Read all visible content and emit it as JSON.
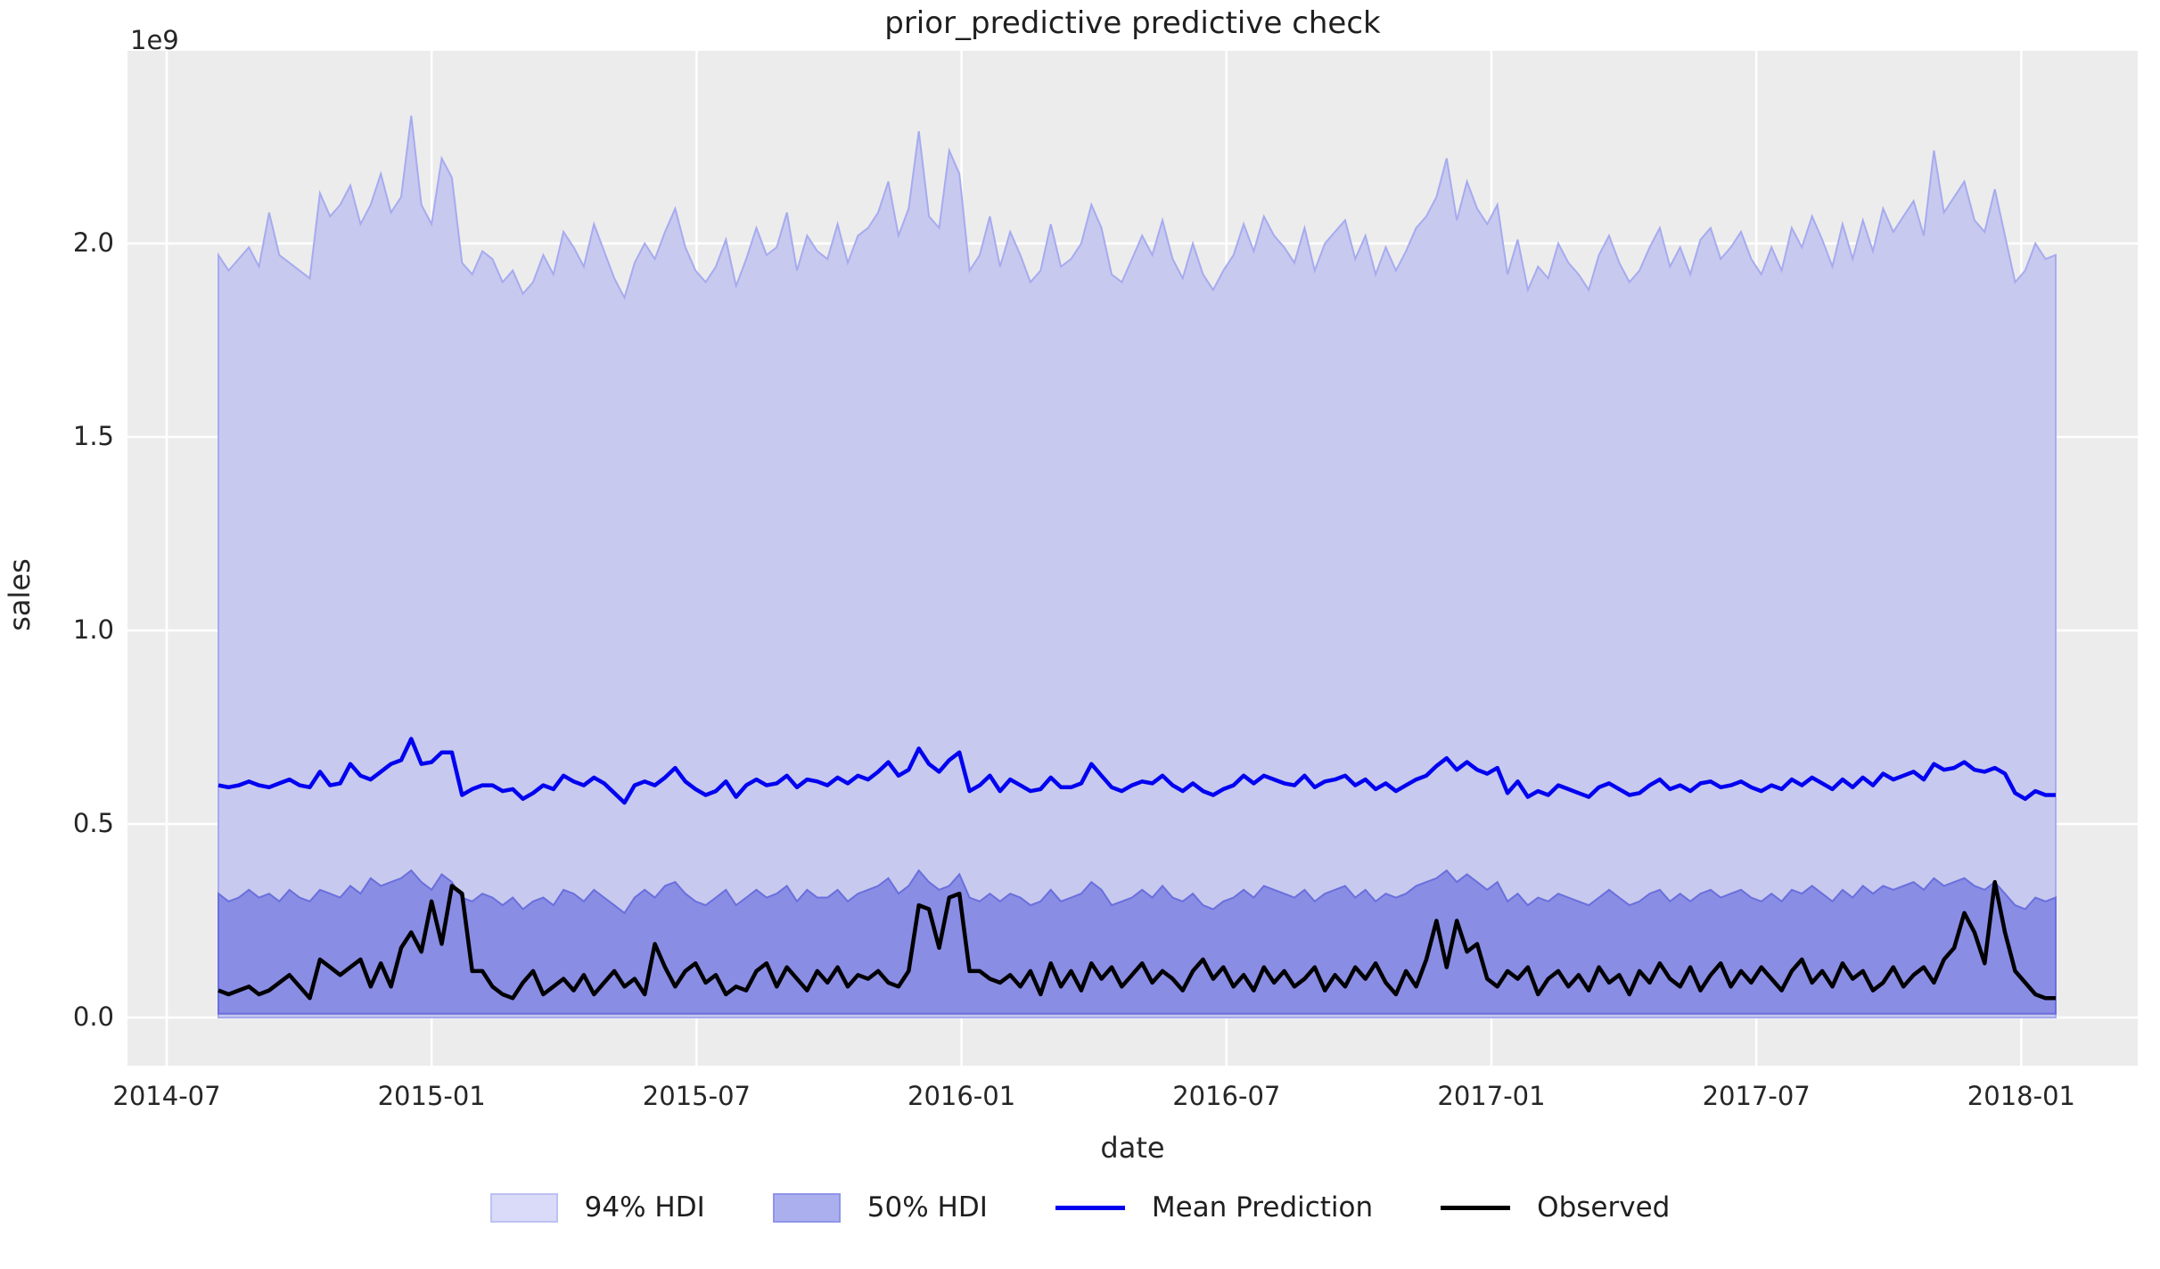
{
  "chart_data": {
    "type": "line",
    "title": "prior_predictive predictive check",
    "xlabel": "date",
    "ylabel": "sales",
    "y_offset_text": "1e9",
    "y_units": "1e9",
    "ylim": [
      -0.12,
      2.5
    ],
    "xticks": [
      "2014-07",
      "2015-01",
      "2015-07",
      "2016-01",
      "2016-07",
      "2017-01",
      "2017-07",
      "2018-01"
    ],
    "yticks": [
      "0.0",
      "0.5",
      "1.0",
      "1.5",
      "2.0"
    ],
    "ytick_values": [
      0.0,
      0.5,
      1.0,
      1.5,
      2.0
    ],
    "x_start_date": "2014-08-03",
    "x_end_date": "2018-01-21",
    "x_frequency": "weekly",
    "legend": {
      "position": "bottom-center",
      "items": [
        {
          "label": "94% HDI",
          "type": "patch",
          "fill": "#d9dbf8",
          "edge": "#bdc1f1"
        },
        {
          "label": "50% HDI",
          "type": "patch",
          "fill": "#abafee",
          "edge": "#8f94e8"
        },
        {
          "label": "Mean Prediction",
          "type": "line",
          "color": "#0202f0"
        },
        {
          "label": "Observed",
          "type": "line",
          "color": "#000000"
        }
      ]
    },
    "colors": {
      "figure_bg": "#ffffff",
      "axes_bg": "#ececec",
      "grid": "#ffffff",
      "hdi94_fill": "#c7c9ee",
      "hdi94_edge": "#a6abef",
      "hdi50_fill": "#898de4",
      "hdi50_edge": "#6a6fdc",
      "mean_line": "#0202f0",
      "observed_line": "#000000",
      "text": "#262626"
    },
    "series": [
      {
        "name": "94% HDI top",
        "values": [
          1.97,
          1.93,
          1.96,
          1.99,
          1.94,
          2.08,
          1.97,
          1.95,
          1.93,
          1.91,
          2.13,
          2.07,
          2.1,
          2.15,
          2.05,
          2.1,
          2.18,
          2.08,
          2.12,
          2.33,
          2.1,
          2.05,
          2.22,
          2.17,
          1.95,
          1.92,
          1.98,
          1.96,
          1.9,
          1.93,
          1.87,
          1.9,
          1.97,
          1.92,
          2.03,
          1.99,
          1.94,
          2.05,
          1.98,
          1.91,
          1.86,
          1.95,
          2.0,
          1.96,
          2.03,
          2.09,
          1.99,
          1.93,
          1.9,
          1.94,
          2.01,
          1.89,
          1.96,
          2.04,
          1.97,
          1.99,
          2.08,
          1.93,
          2.02,
          1.98,
          1.96,
          2.05,
          1.95,
          2.02,
          2.04,
          2.08,
          2.16,
          2.02,
          2.09,
          2.29,
          2.07,
          2.04,
          2.24,
          2.18,
          1.93,
          1.97,
          2.07,
          1.94,
          2.03,
          1.97,
          1.9,
          1.93,
          2.05,
          1.94,
          1.96,
          2.0,
          2.1,
          2.04,
          1.92,
          1.9,
          1.96,
          2.02,
          1.97,
          2.06,
          1.96,
          1.91,
          2.0,
          1.92,
          1.88,
          1.93,
          1.97,
          2.05,
          1.98,
          2.07,
          2.02,
          1.99,
          1.95,
          2.04,
          1.93,
          2.0,
          2.03,
          2.06,
          1.96,
          2.02,
          1.92,
          1.99,
          1.93,
          1.98,
          2.04,
          2.07,
          2.12,
          2.22,
          2.06,
          2.16,
          2.09,
          2.05,
          2.1,
          1.92,
          2.01,
          1.88,
          1.94,
          1.91,
          2.0,
          1.95,
          1.92,
          1.88,
          1.97,
          2.02,
          1.95,
          1.9,
          1.93,
          1.99,
          2.04,
          1.94,
          1.99,
          1.92,
          2.01,
          2.04,
          1.96,
          1.99,
          2.03,
          1.96,
          1.92,
          1.99,
          1.93,
          2.04,
          1.99,
          2.07,
          2.01,
          1.94,
          2.05,
          1.96,
          2.06,
          1.98,
          2.09,
          2.03,
          2.07,
          2.11,
          2.02,
          2.24,
          2.08,
          2.12,
          2.16,
          2.06,
          2.03,
          2.14,
          2.02,
          1.9,
          1.93,
          2.0,
          1.96,
          1.97
        ]
      },
      {
        "name": "94% HDI bottom",
        "values": [
          0.0,
          0.0,
          0.0,
          0.0,
          0.0,
          0.0,
          0.0,
          0.0,
          0.0,
          0.0,
          0.0,
          0.0,
          0.0,
          0.0,
          0.0,
          0.0,
          0.0,
          0.0,
          0.0,
          0.0,
          0.0,
          0.0,
          0.0,
          0.0,
          0.0,
          0.0,
          0.0,
          0.0,
          0.0,
          0.0,
          0.0,
          0.0,
          0.0,
          0.0,
          0.0,
          0.0,
          0.0,
          0.0,
          0.0,
          0.0,
          0.0,
          0.0,
          0.0,
          0.0,
          0.0,
          0.0,
          0.0,
          0.0,
          0.0,
          0.0,
          0.0,
          0.0,
          0.0,
          0.0,
          0.0,
          0.0,
          0.0,
          0.0,
          0.0,
          0.0,
          0.0,
          0.0,
          0.0,
          0.0,
          0.0,
          0.0,
          0.0,
          0.0,
          0.0,
          0.0,
          0.0,
          0.0,
          0.0,
          0.0,
          0.0,
          0.0,
          0.0,
          0.0,
          0.0,
          0.0,
          0.0,
          0.0,
          0.0,
          0.0,
          0.0,
          0.0,
          0.0,
          0.0,
          0.0,
          0.0,
          0.0,
          0.0,
          0.0,
          0.0,
          0.0,
          0.0,
          0.0,
          0.0,
          0.0,
          0.0,
          0.0,
          0.0,
          0.0,
          0.0,
          0.0,
          0.0,
          0.0,
          0.0,
          0.0,
          0.0,
          0.0,
          0.0,
          0.0,
          0.0,
          0.0,
          0.0,
          0.0,
          0.0,
          0.0,
          0.0,
          0.0,
          0.0,
          0.0,
          0.0,
          0.0,
          0.0,
          0.0,
          0.0,
          0.0,
          0.0,
          0.0,
          0.0,
          0.0,
          0.0,
          0.0,
          0.0,
          0.0,
          0.0,
          0.0,
          0.0,
          0.0,
          0.0,
          0.0,
          0.0,
          0.0,
          0.0,
          0.0,
          0.0,
          0.0,
          0.0,
          0.0,
          0.0,
          0.0,
          0.0,
          0.0,
          0.0,
          0.0,
          0.0,
          0.0,
          0.0,
          0.0,
          0.0,
          0.0,
          0.0,
          0.0,
          0.0,
          0.0,
          0.0,
          0.0,
          0.0,
          0.0,
          0.0,
          0.0,
          0.0,
          0.0,
          0.0,
          0.0,
          0.0,
          0.0,
          0.0,
          0.0,
          0.0
        ]
      },
      {
        "name": "50% HDI top",
        "values": [
          0.32,
          0.3,
          0.31,
          0.33,
          0.31,
          0.32,
          0.3,
          0.33,
          0.31,
          0.3,
          0.33,
          0.32,
          0.31,
          0.34,
          0.32,
          0.36,
          0.34,
          0.35,
          0.36,
          0.38,
          0.35,
          0.33,
          0.37,
          0.35,
          0.31,
          0.3,
          0.32,
          0.31,
          0.29,
          0.31,
          0.28,
          0.3,
          0.31,
          0.29,
          0.33,
          0.32,
          0.3,
          0.33,
          0.31,
          0.29,
          0.27,
          0.31,
          0.33,
          0.31,
          0.34,
          0.35,
          0.32,
          0.3,
          0.29,
          0.31,
          0.33,
          0.29,
          0.31,
          0.33,
          0.31,
          0.32,
          0.34,
          0.3,
          0.33,
          0.31,
          0.31,
          0.33,
          0.3,
          0.32,
          0.33,
          0.34,
          0.36,
          0.32,
          0.34,
          0.38,
          0.35,
          0.33,
          0.34,
          0.37,
          0.31,
          0.3,
          0.32,
          0.3,
          0.32,
          0.31,
          0.29,
          0.3,
          0.33,
          0.3,
          0.31,
          0.32,
          0.35,
          0.33,
          0.29,
          0.3,
          0.31,
          0.33,
          0.31,
          0.34,
          0.31,
          0.3,
          0.32,
          0.29,
          0.28,
          0.3,
          0.31,
          0.33,
          0.31,
          0.34,
          0.33,
          0.32,
          0.31,
          0.33,
          0.3,
          0.32,
          0.33,
          0.34,
          0.31,
          0.33,
          0.3,
          0.32,
          0.31,
          0.32,
          0.34,
          0.35,
          0.36,
          0.38,
          0.35,
          0.37,
          0.35,
          0.33,
          0.35,
          0.3,
          0.32,
          0.29,
          0.31,
          0.3,
          0.32,
          0.31,
          0.3,
          0.29,
          0.31,
          0.33,
          0.31,
          0.29,
          0.3,
          0.32,
          0.33,
          0.3,
          0.32,
          0.3,
          0.32,
          0.33,
          0.31,
          0.32,
          0.33,
          0.31,
          0.3,
          0.32,
          0.3,
          0.33,
          0.32,
          0.34,
          0.32,
          0.3,
          0.33,
          0.31,
          0.34,
          0.32,
          0.34,
          0.33,
          0.34,
          0.35,
          0.33,
          0.36,
          0.34,
          0.35,
          0.36,
          0.34,
          0.33,
          0.35,
          0.32,
          0.29,
          0.28,
          0.31,
          0.3,
          0.31
        ]
      },
      {
        "name": "50% HDI bottom",
        "values": [
          0.01,
          0.01,
          0.01,
          0.01,
          0.01,
          0.01,
          0.01,
          0.01,
          0.01,
          0.01,
          0.01,
          0.01,
          0.01,
          0.01,
          0.01,
          0.01,
          0.01,
          0.01,
          0.01,
          0.01,
          0.01,
          0.01,
          0.01,
          0.01,
          0.01,
          0.01,
          0.01,
          0.01,
          0.01,
          0.01,
          0.01,
          0.01,
          0.01,
          0.01,
          0.01,
          0.01,
          0.01,
          0.01,
          0.01,
          0.01,
          0.01,
          0.01,
          0.01,
          0.01,
          0.01,
          0.01,
          0.01,
          0.01,
          0.01,
          0.01,
          0.01,
          0.01,
          0.01,
          0.01,
          0.01,
          0.01,
          0.01,
          0.01,
          0.01,
          0.01,
          0.01,
          0.01,
          0.01,
          0.01,
          0.01,
          0.01,
          0.01,
          0.01,
          0.01,
          0.01,
          0.01,
          0.01,
          0.01,
          0.01,
          0.01,
          0.01,
          0.01,
          0.01,
          0.01,
          0.01,
          0.01,
          0.01,
          0.01,
          0.01,
          0.01,
          0.01,
          0.01,
          0.01,
          0.01,
          0.01,
          0.01,
          0.01,
          0.01,
          0.01,
          0.01,
          0.01,
          0.01,
          0.01,
          0.01,
          0.01,
          0.01,
          0.01,
          0.01,
          0.01,
          0.01,
          0.01,
          0.01,
          0.01,
          0.01,
          0.01,
          0.01,
          0.01,
          0.01,
          0.01,
          0.01,
          0.01,
          0.01,
          0.01,
          0.01,
          0.01,
          0.01,
          0.01,
          0.01,
          0.01,
          0.01,
          0.01,
          0.01,
          0.01,
          0.01,
          0.01,
          0.01,
          0.01,
          0.01,
          0.01,
          0.01,
          0.01,
          0.01,
          0.01,
          0.01,
          0.01,
          0.01,
          0.01,
          0.01,
          0.01,
          0.01,
          0.01,
          0.01,
          0.01,
          0.01,
          0.01,
          0.01,
          0.01,
          0.01,
          0.01,
          0.01,
          0.01,
          0.01,
          0.01,
          0.01,
          0.01,
          0.01,
          0.01,
          0.01,
          0.01,
          0.01,
          0.01,
          0.01,
          0.01,
          0.01,
          0.01,
          0.01,
          0.01,
          0.01,
          0.01,
          0.01,
          0.01,
          0.01,
          0.01,
          0.01,
          0.01,
          0.01,
          0.01
        ]
      },
      {
        "name": "Mean Prediction",
        "values": [
          0.6,
          0.595,
          0.6,
          0.61,
          0.6,
          0.595,
          0.605,
          0.615,
          0.6,
          0.595,
          0.635,
          0.6,
          0.605,
          0.655,
          0.625,
          0.615,
          0.635,
          0.655,
          0.665,
          0.72,
          0.655,
          0.66,
          0.685,
          0.685,
          0.575,
          0.59,
          0.6,
          0.6,
          0.585,
          0.59,
          0.565,
          0.58,
          0.6,
          0.59,
          0.625,
          0.61,
          0.6,
          0.62,
          0.605,
          0.58,
          0.555,
          0.6,
          0.61,
          0.6,
          0.62,
          0.645,
          0.61,
          0.59,
          0.575,
          0.585,
          0.61,
          0.57,
          0.6,
          0.615,
          0.6,
          0.605,
          0.625,
          0.595,
          0.615,
          0.61,
          0.6,
          0.62,
          0.605,
          0.625,
          0.615,
          0.635,
          0.66,
          0.625,
          0.64,
          0.695,
          0.655,
          0.635,
          0.665,
          0.685,
          0.585,
          0.6,
          0.625,
          0.585,
          0.615,
          0.6,
          0.585,
          0.59,
          0.62,
          0.595,
          0.595,
          0.605,
          0.655,
          0.625,
          0.595,
          0.585,
          0.6,
          0.61,
          0.605,
          0.625,
          0.6,
          0.585,
          0.605,
          0.585,
          0.575,
          0.59,
          0.6,
          0.625,
          0.605,
          0.625,
          0.615,
          0.605,
          0.6,
          0.625,
          0.595,
          0.61,
          0.615,
          0.625,
          0.6,
          0.615,
          0.59,
          0.605,
          0.585,
          0.6,
          0.615,
          0.625,
          0.65,
          0.67,
          0.64,
          0.66,
          0.64,
          0.63,
          0.645,
          0.58,
          0.61,
          0.57,
          0.585,
          0.575,
          0.6,
          0.59,
          0.58,
          0.57,
          0.595,
          0.605,
          0.59,
          0.575,
          0.58,
          0.6,
          0.615,
          0.59,
          0.6,
          0.585,
          0.605,
          0.61,
          0.595,
          0.6,
          0.61,
          0.595,
          0.585,
          0.6,
          0.59,
          0.615,
          0.6,
          0.62,
          0.605,
          0.59,
          0.615,
          0.595,
          0.62,
          0.6,
          0.63,
          0.615,
          0.625,
          0.635,
          0.615,
          0.655,
          0.64,
          0.645,
          0.66,
          0.64,
          0.635,
          0.645,
          0.63,
          0.58,
          0.565,
          0.585,
          0.575,
          0.575
        ]
      },
      {
        "name": "Observed",
        "values": [
          0.07,
          0.06,
          0.07,
          0.08,
          0.06,
          0.07,
          0.09,
          0.11,
          0.08,
          0.05,
          0.15,
          0.13,
          0.11,
          0.13,
          0.15,
          0.08,
          0.14,
          0.08,
          0.18,
          0.22,
          0.17,
          0.3,
          0.19,
          0.34,
          0.32,
          0.12,
          0.12,
          0.08,
          0.06,
          0.05,
          0.09,
          0.12,
          0.06,
          0.08,
          0.1,
          0.07,
          0.11,
          0.06,
          0.09,
          0.12,
          0.08,
          0.1,
          0.06,
          0.19,
          0.13,
          0.08,
          0.12,
          0.14,
          0.09,
          0.11,
          0.06,
          0.08,
          0.07,
          0.12,
          0.14,
          0.08,
          0.13,
          0.1,
          0.07,
          0.12,
          0.09,
          0.13,
          0.08,
          0.11,
          0.1,
          0.12,
          0.09,
          0.08,
          0.12,
          0.29,
          0.28,
          0.18,
          0.31,
          0.32,
          0.12,
          0.12,
          0.1,
          0.09,
          0.11,
          0.08,
          0.12,
          0.06,
          0.14,
          0.08,
          0.12,
          0.07,
          0.14,
          0.1,
          0.13,
          0.08,
          0.11,
          0.14,
          0.09,
          0.12,
          0.1,
          0.07,
          0.12,
          0.15,
          0.1,
          0.13,
          0.08,
          0.11,
          0.07,
          0.13,
          0.09,
          0.12,
          0.08,
          0.1,
          0.13,
          0.07,
          0.11,
          0.08,
          0.13,
          0.1,
          0.14,
          0.09,
          0.06,
          0.12,
          0.08,
          0.15,
          0.25,
          0.13,
          0.25,
          0.17,
          0.19,
          0.1,
          0.08,
          0.12,
          0.1,
          0.13,
          0.06,
          0.1,
          0.12,
          0.08,
          0.11,
          0.07,
          0.13,
          0.09,
          0.11,
          0.06,
          0.12,
          0.09,
          0.14,
          0.1,
          0.08,
          0.13,
          0.07,
          0.11,
          0.14,
          0.08,
          0.12,
          0.09,
          0.13,
          0.1,
          0.07,
          0.12,
          0.15,
          0.09,
          0.12,
          0.08,
          0.14,
          0.1,
          0.12,
          0.07,
          0.09,
          0.13,
          0.08,
          0.11,
          0.13,
          0.09,
          0.15,
          0.18,
          0.27,
          0.22,
          0.14,
          0.35,
          0.22,
          0.12,
          0.09,
          0.06,
          0.05,
          0.05
        ]
      }
    ]
  }
}
